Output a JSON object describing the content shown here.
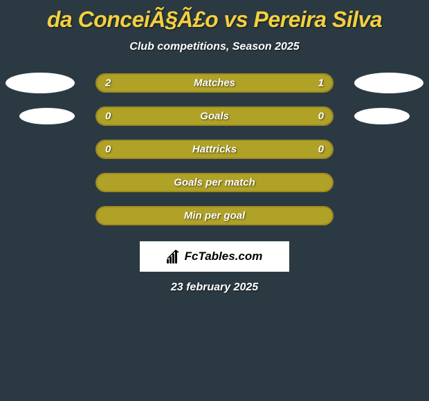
{
  "colors": {
    "background": "#2b3a42",
    "accent": "#f4d03f",
    "bar_fill": "#b0a227",
    "bar_border": "#a08a1f",
    "avatar": "#ffffff",
    "branding_bg": "#ffffff",
    "text_white": "#ffffff",
    "text_black": "#000000"
  },
  "title": "da ConceiÃ§Ã£o vs Pereira Silva",
  "subtitle": "Club competitions, Season 2025",
  "stats": [
    {
      "label": "Matches",
      "left_value": "2",
      "right_value": "1",
      "left_fill_pct": 66,
      "right_fill_pct": 34,
      "show_avatars": "large"
    },
    {
      "label": "Goals",
      "left_value": "0",
      "right_value": "0",
      "left_fill_pct": 0,
      "right_fill_pct": 0,
      "full_fill": true,
      "show_avatars": "small"
    },
    {
      "label": "Hattricks",
      "left_value": "0",
      "right_value": "0",
      "left_fill_pct": 0,
      "right_fill_pct": 0,
      "full_fill": true,
      "show_avatars": "none"
    },
    {
      "label": "Goals per match",
      "left_value": "",
      "right_value": "",
      "left_fill_pct": 0,
      "right_fill_pct": 0,
      "full_fill": true,
      "show_avatars": "none"
    },
    {
      "label": "Min per goal",
      "left_value": "",
      "right_value": "",
      "left_fill_pct": 0,
      "right_fill_pct": 0,
      "full_fill": true,
      "show_avatars": "none"
    }
  ],
  "branding": "FcTables.com",
  "date": "23 february 2025"
}
